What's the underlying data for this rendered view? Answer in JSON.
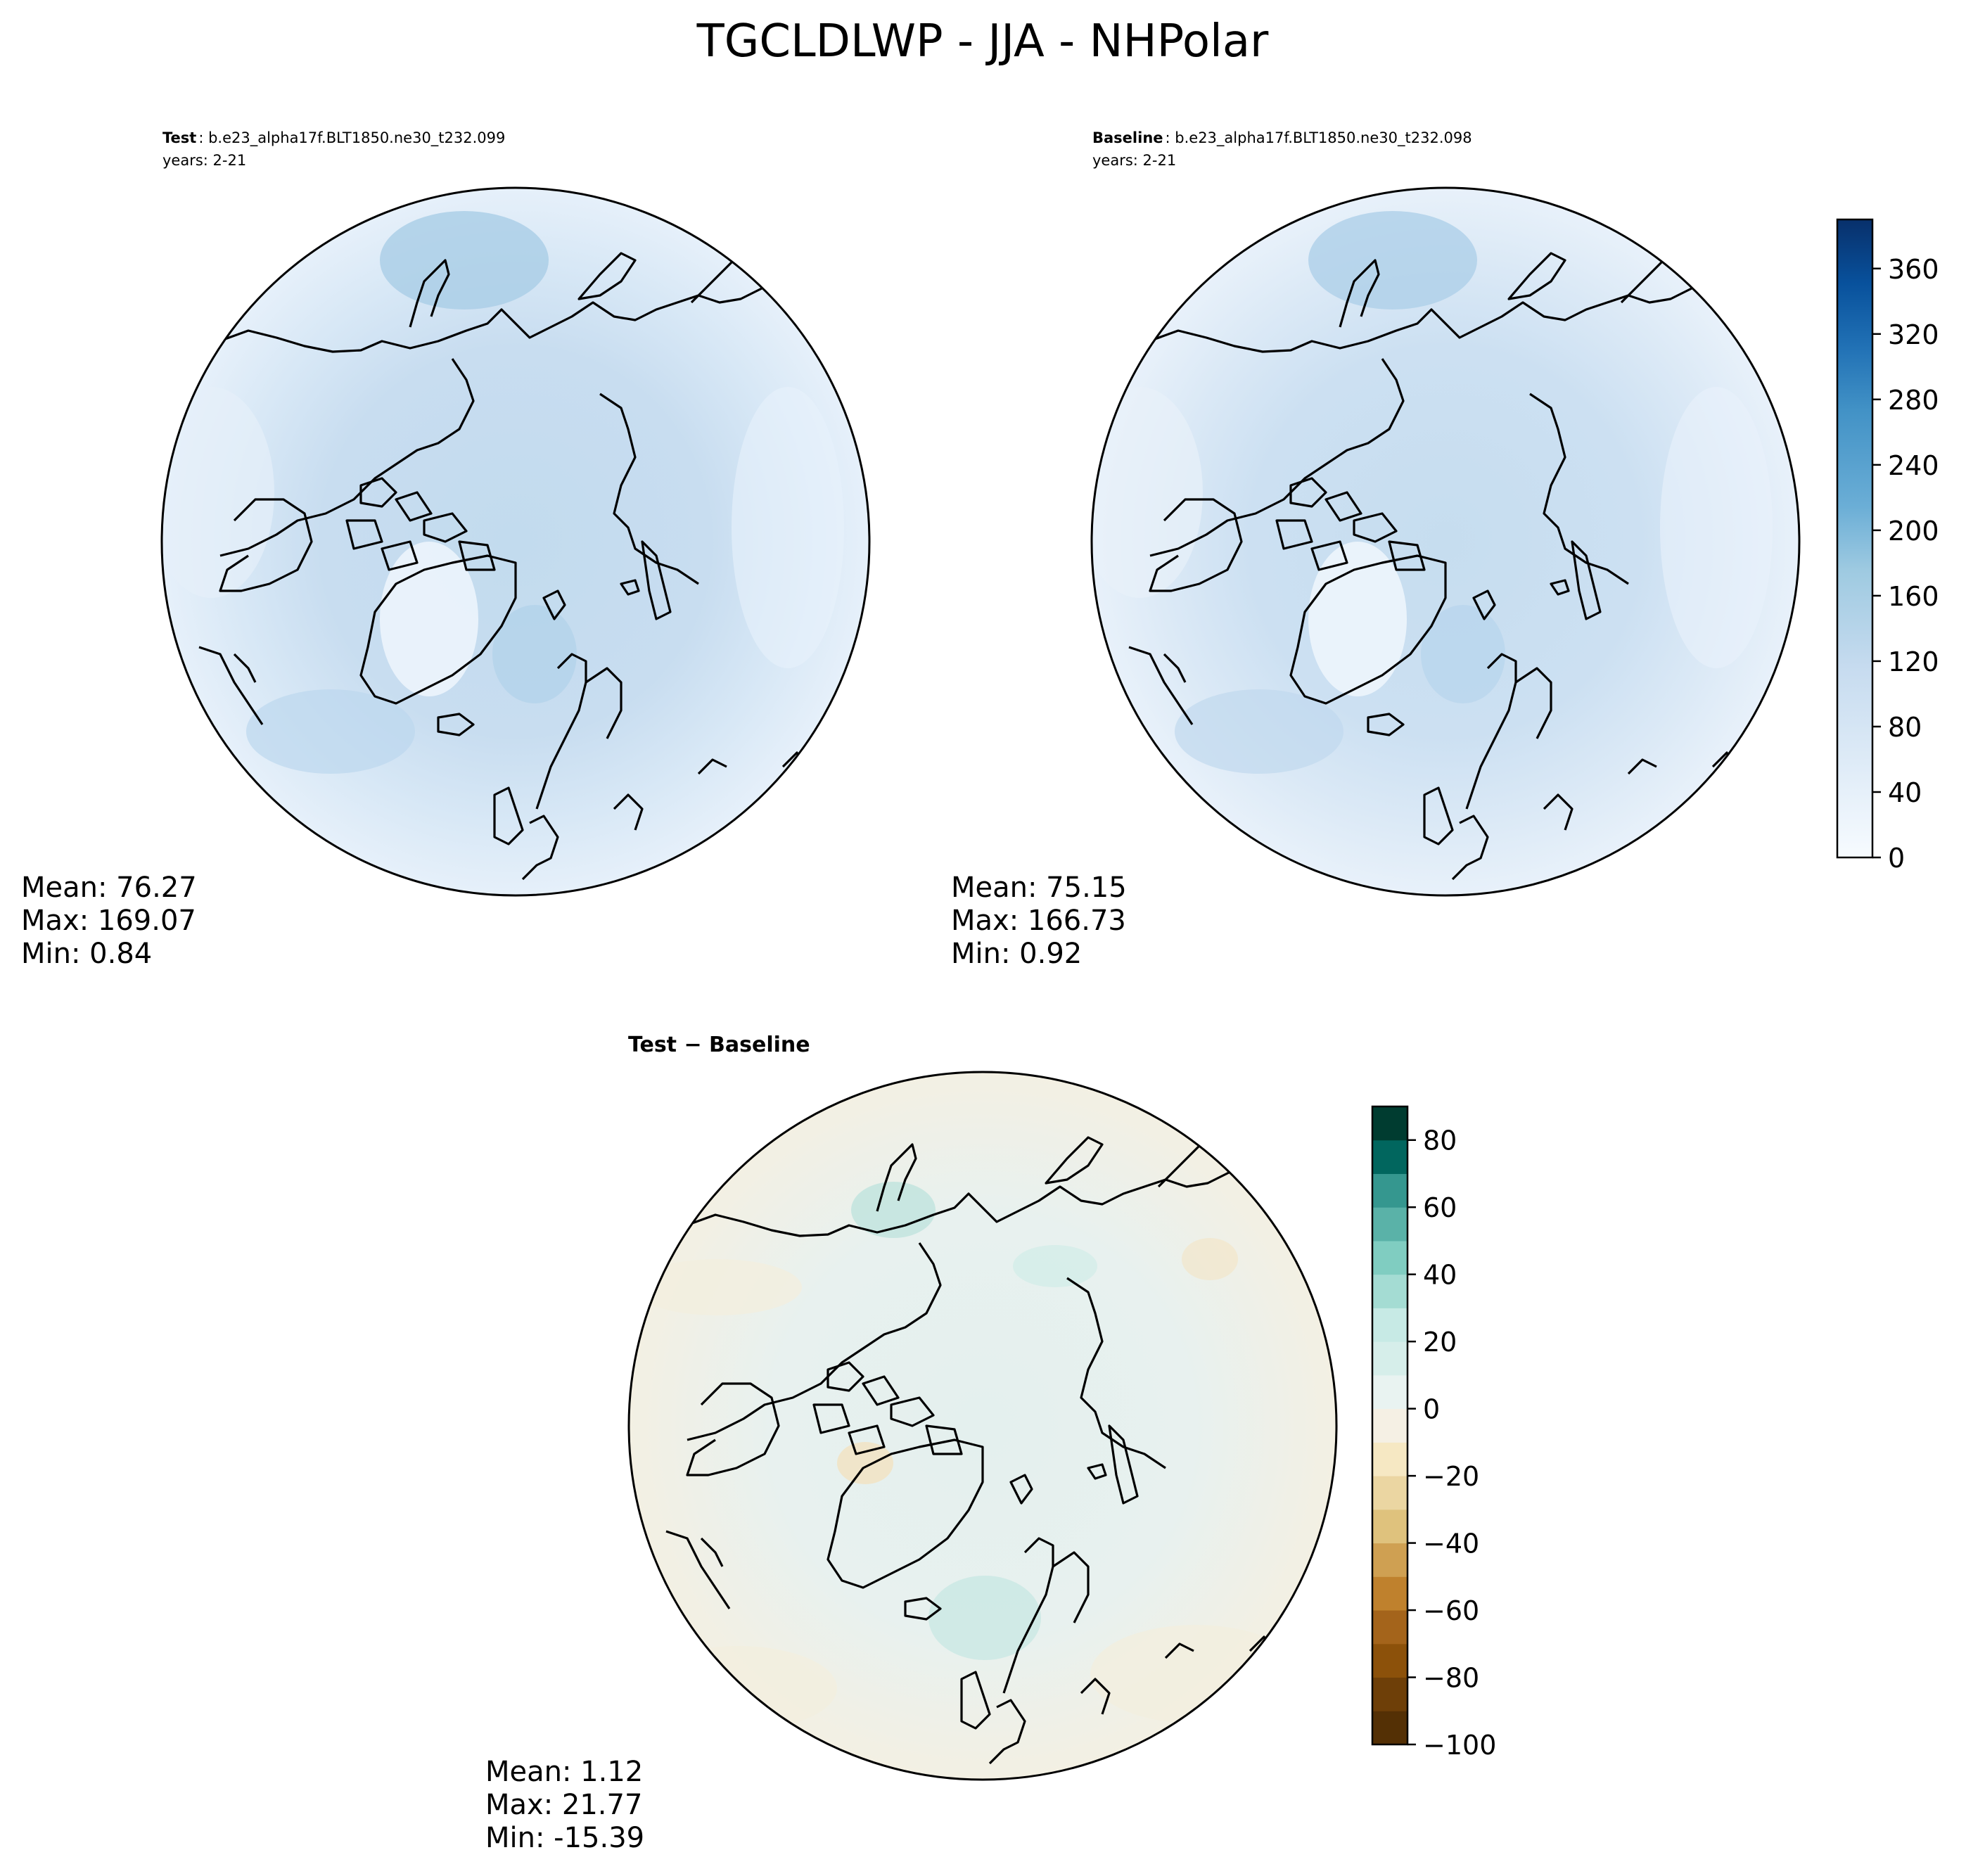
{
  "title": "TGCLDLWP - JJA - NHPolar",
  "panels": [
    {
      "id": "test",
      "label": "Test",
      "case": ": b.e23_alpha17f.BLT1850.ne30_t232.099",
      "years": "years: 2-21",
      "stats": {
        "mean": "Mean: 76.27",
        "max": "Max: 169.07",
        "min": "Min:  0.84"
      }
    },
    {
      "id": "baseline",
      "label": "Baseline",
      "case": ": b.e23_alpha17f.BLT1850.ne30_t232.098",
      "years": "years: 2-21",
      "stats": {
        "mean": "Mean: 75.15",
        "max": "Max: 166.73",
        "min": "Min:  0.92"
      }
    },
    {
      "id": "diff",
      "label": "Test − Baseline",
      "stats": {
        "mean": "Mean:  1.12",
        "max": "Max: 21.77",
        "min": "Min: -15.39"
      }
    }
  ],
  "colorbars": [
    {
      "id": "abs",
      "colormap": "Blues",
      "range": [
        0,
        390
      ],
      "ticks": [
        "0",
        "40",
        "80",
        "120",
        "160",
        "200",
        "240",
        "280",
        "320",
        "360"
      ],
      "tick_values": [
        0,
        40,
        80,
        120,
        160,
        200,
        240,
        280,
        320,
        360
      ],
      "colors": [
        "#f4f9ff",
        "#dbe9f6",
        "#c6dbef",
        "#9ecae1",
        "#6baed6",
        "#4292c6",
        "#2171b5",
        "#08519c",
        "#08306b"
      ]
    },
    {
      "id": "diff",
      "colormap": "BrBG",
      "range": [
        -100,
        90
      ],
      "ticks": [
        "80",
        "60",
        "40",
        "20",
        "0",
        "−20",
        "−40",
        "−60",
        "−80",
        "−100"
      ],
      "tick_values": [
        80,
        60,
        40,
        20,
        0,
        -20,
        -40,
        -60,
        -80,
        -100
      ],
      "colors": [
        "#543005",
        "#8c510a",
        "#bf812d",
        "#dfc27d",
        "#f6e8c3",
        "#f5f5f5",
        "#c7eae5",
        "#80cdc1",
        "#35978f",
        "#01665e",
        "#003c30"
      ]
    }
  ]
}
